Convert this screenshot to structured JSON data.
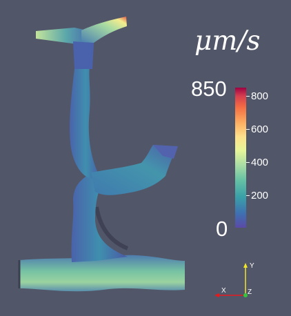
{
  "scalar_bar": {
    "title": "μm/s",
    "range_max": "850",
    "range_min": "0",
    "tick_labels": [
      "800",
      "600",
      "400",
      "200"
    ]
  },
  "orientation_axes": {
    "x_label": "X",
    "y_label": "Y",
    "z_label": "Z"
  },
  "colors": {
    "background": "#525669",
    "x_axis": "#e41a1c",
    "y_axis": "#f2e52a",
    "z_axis": "#36c43f"
  },
  "mesh": {
    "name": "vessel-mesh"
  }
}
